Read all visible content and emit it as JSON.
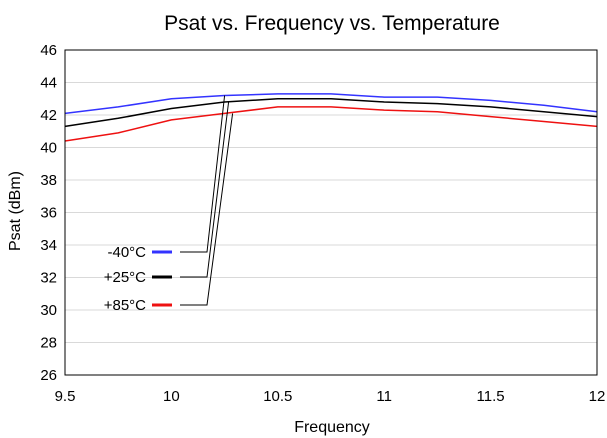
{
  "chart_data": {
    "type": "line",
    "title": "Psat vs. Frequency vs. Temperature",
    "xlabel": "Frequency",
    "ylabel": "Psat (dBm)",
    "xlim": [
      9.5,
      12
    ],
    "ylim": [
      26,
      46
    ],
    "xticks": [
      9.5,
      10,
      10.5,
      11,
      11.5,
      12
    ],
    "xtick_labels": [
      "9.5",
      "10",
      "10.5",
      "11",
      "11.5",
      "12"
    ],
    "yticks": [
      26,
      28,
      30,
      32,
      34,
      36,
      38,
      40,
      42,
      44,
      46
    ],
    "ytick_labels": [
      "26",
      "28",
      "30",
      "32",
      "34",
      "36",
      "38",
      "40",
      "42",
      "44",
      "46"
    ],
    "grid": "horizontal",
    "legend_position": "lower-left",
    "series": [
      {
        "name": "-40°C",
        "color": "#3333ff",
        "x": [
          9.5,
          9.75,
          10.0,
          10.25,
          10.5,
          10.75,
          11.0,
          11.25,
          11.5,
          11.75,
          12.0
        ],
        "y": [
          42.1,
          42.5,
          43.0,
          43.2,
          43.3,
          43.3,
          43.1,
          43.1,
          42.9,
          42.6,
          42.2
        ]
      },
      {
        "name": "+25°C",
        "color": "#000000",
        "x": [
          9.5,
          9.75,
          10.0,
          10.25,
          10.5,
          10.75,
          11.0,
          11.25,
          11.5,
          11.75,
          12.0
        ],
        "y": [
          41.3,
          41.8,
          42.4,
          42.8,
          43.0,
          43.0,
          42.8,
          42.7,
          42.5,
          42.2,
          41.9
        ]
      },
      {
        "name": "+85°C",
        "color": "#ee1111",
        "x": [
          9.5,
          9.75,
          10.0,
          10.25,
          10.5,
          10.75,
          11.0,
          11.25,
          11.5,
          11.75,
          12.0
        ],
        "y": [
          40.4,
          40.9,
          41.7,
          42.1,
          42.5,
          42.5,
          42.3,
          42.2,
          41.9,
          41.6,
          41.3
        ]
      }
    ]
  }
}
